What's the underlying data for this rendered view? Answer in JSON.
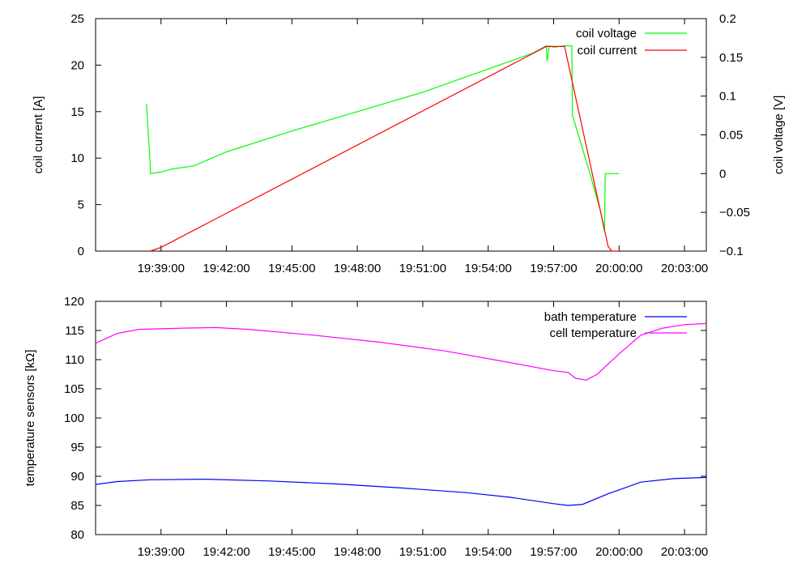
{
  "chart_data": [
    {
      "type": "line",
      "x_ticks": [
        "19:39:00",
        "19:42:00",
        "19:45:00",
        "19:48:00",
        "19:51:00",
        "19:54:00",
        "19:57:00",
        "20:00:00",
        "20:03:00"
      ],
      "xlim": [
        "19:36:00",
        "20:04:00"
      ],
      "ylabel": "coil current [A]",
      "ylim": [
        0,
        25
      ],
      "y_ticks": [
        0,
        5,
        10,
        15,
        20,
        25
      ],
      "y2label": "coil voltage [V]",
      "y2lim": [
        -0.1,
        0.2
      ],
      "y2_ticks": [
        "-0.1",
        "-0.05",
        "0",
        "0.05",
        "0.1",
        "0.15",
        "0.2"
      ],
      "legend_position": "top-right",
      "grid": false,
      "series": [
        {
          "name": "coil voltage",
          "color": "#00ff00",
          "axis": "y2",
          "x": [
            "19:38:20",
            "19:38:30",
            "19:38:31",
            "19:39:00",
            "19:39:30",
            "19:40:30",
            "19:42:00",
            "19:45:00",
            "19:48:00",
            "19:51:00",
            "19:54:00",
            "19:56:00",
            "19:56:40",
            "19:56:42",
            "19:56:48",
            "19:57:00",
            "19:57:30",
            "19:57:50",
            "19:57:52",
            "19:58:40",
            "19:59:10",
            "19:59:20",
            "19:59:22",
            "20:00:00"
          ],
          "values": [
            0.09,
            0.015,
            0.0,
            0.002,
            0.006,
            0.01,
            0.028,
            0.055,
            0.08,
            0.105,
            0.135,
            0.155,
            0.165,
            0.145,
            0.165,
            0.163,
            0.165,
            0.165,
            0.075,
            0.0,
            -0.05,
            -0.075,
            0.0,
            0.0
          ]
        },
        {
          "name": "coil current",
          "color": "#ff0000",
          "axis": "y",
          "x": [
            "19:38:30",
            "19:39:00",
            "19:56:40",
            "19:57:30",
            "19:59:30",
            "19:59:40",
            "19:59:50",
            "20:00:00"
          ],
          "values": [
            0,
            0.4,
            22,
            22,
            0.5,
            0,
            0,
            0
          ]
        }
      ]
    },
    {
      "type": "line",
      "x_ticks": [
        "19:39:00",
        "19:42:00",
        "19:45:00",
        "19:48:00",
        "19:51:00",
        "19:54:00",
        "19:57:00",
        "20:00:00",
        "20:03:00"
      ],
      "xlim": [
        "19:36:00",
        "20:04:00"
      ],
      "ylabel": "temperature sensors [kΩ]",
      "ylim": [
        80,
        120
      ],
      "y_ticks": [
        80,
        85,
        90,
        95,
        100,
        105,
        110,
        115,
        120
      ],
      "legend_position": "top-right",
      "grid": false,
      "series": [
        {
          "name": "bath temperature",
          "color": "#0000ff",
          "x": [
            "19:36:00",
            "19:37:00",
            "19:38:30",
            "19:41:00",
            "19:44:00",
            "19:47:00",
            "19:50:00",
            "19:53:00",
            "19:55:00",
            "19:57:00",
            "19:57:40",
            "19:58:20",
            "19:59:30",
            "20:01:00",
            "20:02:30",
            "20:04:00"
          ],
          "values": [
            88.6,
            89.1,
            89.4,
            89.5,
            89.2,
            88.7,
            88.0,
            87.2,
            86.4,
            85.3,
            85.0,
            85.2,
            87.0,
            89.0,
            89.6,
            89.8
          ]
        },
        {
          "name": "cell temperature",
          "color": "#ff00ff",
          "x": [
            "19:36:00",
            "19:37:00",
            "19:38:00",
            "19:40:00",
            "19:41:30",
            "19:43:00",
            "19:46:00",
            "19:49:00",
            "19:52:00",
            "19:55:00",
            "19:57:00",
            "19:57:40",
            "19:58:00",
            "19:58:30",
            "19:59:00",
            "20:00:00",
            "20:01:00",
            "20:02:00",
            "20:03:00",
            "20:04:00"
          ],
          "values": [
            112.8,
            114.5,
            115.2,
            115.4,
            115.5,
            115.2,
            114.2,
            113.0,
            111.5,
            109.5,
            108.1,
            107.8,
            106.8,
            106.5,
            107.5,
            111.0,
            114.2,
            115.4,
            116.0,
            116.2
          ]
        }
      ]
    }
  ]
}
